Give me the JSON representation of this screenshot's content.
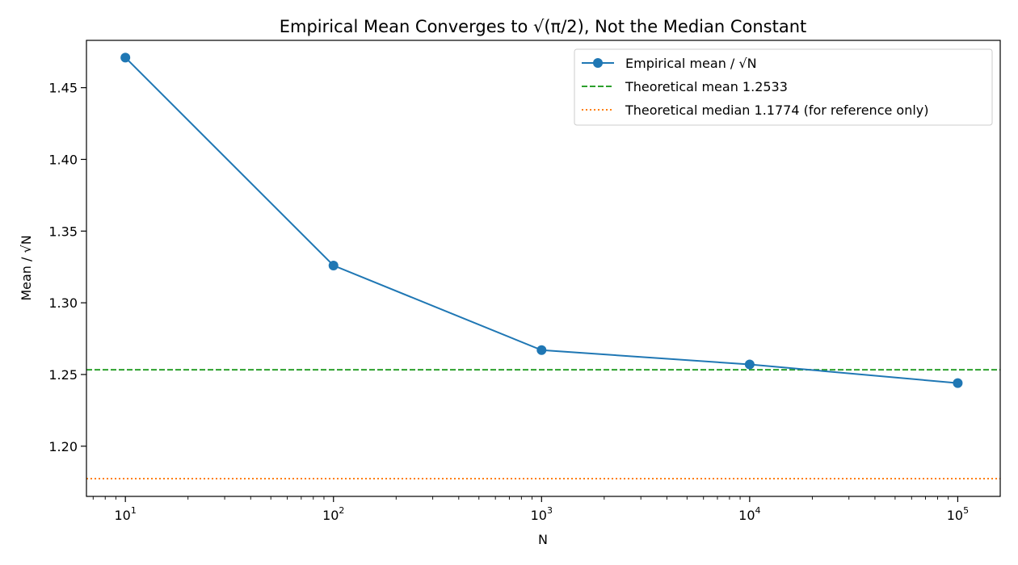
{
  "chart_data": {
    "type": "line",
    "title": "Empirical Mean Converges to √(π/2), Not the Median Constant",
    "xlabel": "N",
    "ylabel": "Mean / √N",
    "xscale": "log",
    "xlim": [
      6.5,
      160000
    ],
    "ylim": [
      1.165,
      1.483
    ],
    "x_major_ticks": [
      {
        "value": 10,
        "base": "10",
        "exp": "1"
      },
      {
        "value": 100,
        "base": "10",
        "exp": "2"
      },
      {
        "value": 1000,
        "base": "10",
        "exp": "3"
      },
      {
        "value": 10000,
        "base": "10",
        "exp": "4"
      },
      {
        "value": 100000,
        "base": "10",
        "exp": "5"
      }
    ],
    "y_ticks": [
      "1.20",
      "1.25",
      "1.30",
      "1.35",
      "1.40",
      "1.45"
    ],
    "grid": false,
    "legend_position": "top-right",
    "series": [
      {
        "name": "Empirical mean / √N",
        "color": "#1f77b4",
        "style": "solid",
        "marker": "circle",
        "x": [
          10,
          100,
          1000,
          10000,
          100000
        ],
        "y": [
          1.471,
          1.326,
          1.267,
          1.257,
          1.244
        ]
      }
    ],
    "reference_lines": [
      {
        "name": "Theoretical mean 1.2533",
        "value": 1.2533,
        "color": "#2ca02c",
        "style": "dashed"
      },
      {
        "name": "Theoretical median 1.1774 (for reference only)",
        "value": 1.1774,
        "color": "#ff7f0e",
        "style": "dotted"
      }
    ]
  }
}
